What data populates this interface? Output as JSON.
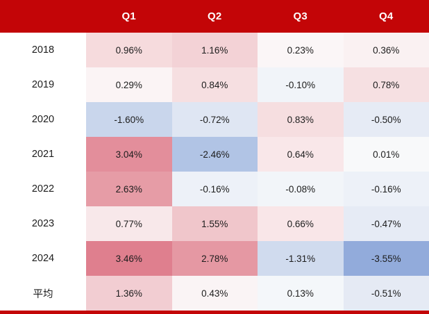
{
  "chart_data": {
    "type": "heatmap",
    "title": "",
    "columns": [
      "Q1",
      "Q2",
      "Q3",
      "Q4"
    ],
    "row_labels": [
      "2018",
      "2019",
      "2020",
      "2021",
      "2022",
      "2023",
      "2024",
      "平均"
    ],
    "rows": [
      {
        "label": "2018",
        "values": [
          0.96,
          1.16,
          0.23,
          0.36
        ],
        "display": [
          "0.96%",
          "1.16%",
          "0.23%",
          "0.36%"
        ],
        "colors": [
          "#F6DBDD",
          "#F3D2D6",
          "#FBF6F7",
          "#FAF1F2"
        ]
      },
      {
        "label": "2019",
        "values": [
          0.29,
          0.84,
          -0.1,
          0.78
        ],
        "display": [
          "0.29%",
          "0.84%",
          "-0.10%",
          "0.78%"
        ],
        "colors": [
          "#FBF4F5",
          "#F6DFE1",
          "#F1F4F9",
          "#F6E0E2"
        ]
      },
      {
        "label": "2020",
        "values": [
          -1.6,
          -0.72,
          0.83,
          -0.5
        ],
        "display": [
          "-1.60%",
          "-0.72%",
          "0.83%",
          "-0.50%"
        ],
        "colors": [
          "#C9D6EC",
          "#DFE6F3",
          "#F6DEE0",
          "#E6EBF5"
        ]
      },
      {
        "label": "2021",
        "values": [
          3.04,
          -2.46,
          0.64,
          0.01
        ],
        "display": [
          "3.04%",
          "-2.46%",
          "0.64%",
          "0.01%"
        ],
        "colors": [
          "#E38E9B",
          "#B1C4E5",
          "#F9E7E9",
          "#F8F9FA"
        ]
      },
      {
        "label": "2022",
        "values": [
          2.63,
          -0.16,
          -0.08,
          -0.16
        ],
        "display": [
          "2.63%",
          "-0.16%",
          "-0.08%",
          "-0.16%"
        ],
        "colors": [
          "#E69CA6",
          "#EDF1F8",
          "#F2F5F9",
          "#EDF1F8"
        ]
      },
      {
        "label": "2023",
        "values": [
          0.77,
          1.55,
          0.66,
          -0.47
        ],
        "display": [
          "0.77%",
          "1.55%",
          "0.66%",
          "-0.47%"
        ],
        "colors": [
          "#F8E8EA",
          "#F0C6CB",
          "#F9E6E8",
          "#E6EBF5"
        ]
      },
      {
        "label": "2024",
        "values": [
          3.46,
          2.78,
          -1.31,
          -3.55
        ],
        "display": [
          "3.46%",
          "2.78%",
          "-1.31%",
          "-3.55%"
        ],
        "colors": [
          "#DF7F8E",
          "#E598A3",
          "#D0DBEE",
          "#92ABDB"
        ]
      },
      {
        "label": "平均",
        "values": [
          1.36,
          0.43,
          0.13,
          -0.51
        ],
        "display": [
          "1.36%",
          "0.43%",
          "0.13%",
          "-0.51%"
        ],
        "colors": [
          "#F2CDD2",
          "#FAF4F5",
          "#F4F7FA",
          "#E5EAF4"
        ]
      }
    ],
    "colorscale": {
      "positive_max": "#DF7F8E",
      "zero": "#FFFFFF",
      "negative_max": "#92ABDB"
    },
    "layout": {
      "legend": false,
      "grid": false
    }
  },
  "theme": {
    "header_bg": "#C30507",
    "header_text": "#FFFFFF",
    "body_text": "#1C1C1C",
    "accent_bar": "#C30507"
  }
}
